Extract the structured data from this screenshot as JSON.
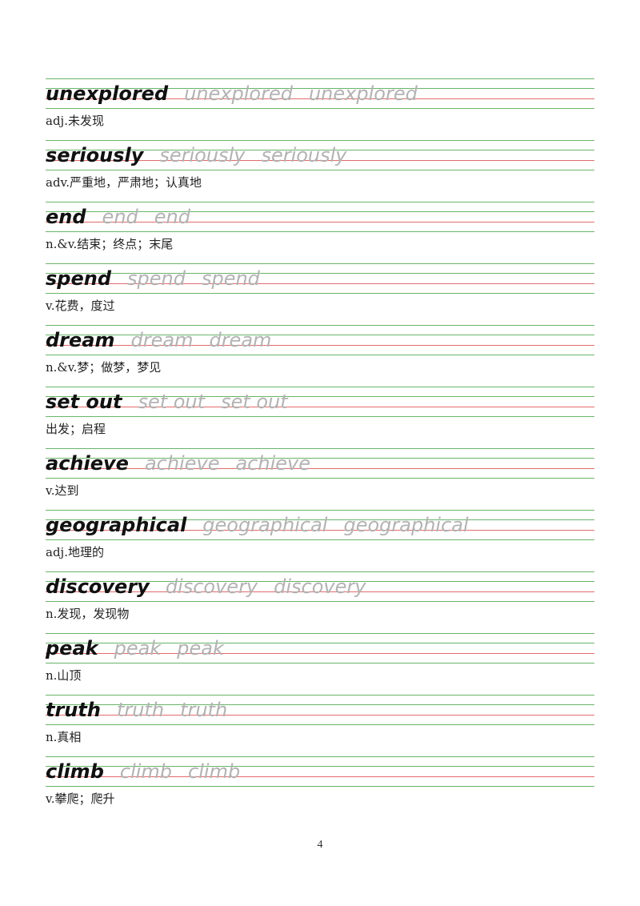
{
  "entries": [
    {
      "word": "unexplored",
      "meaning": "adj.未发现"
    },
    {
      "word": "seriously",
      "meaning": "adv.严重地，严肃地；认真地"
    },
    {
      "word": "end",
      "meaning": "n.&v.结束；终点；末尾"
    },
    {
      "word": "spend",
      "meaning": "v.花费，度过"
    },
    {
      "word": "dream",
      "meaning": "n.&v.梦；做梦，梦见"
    },
    {
      "word": "set out",
      "meaning": "出发；启程"
    },
    {
      "word": "achieve",
      "meaning": "v.达到"
    },
    {
      "word": "geographical",
      "meaning": "adj.地理的"
    },
    {
      "word": "discovery",
      "meaning": "n.发现，发现物"
    },
    {
      "word": "peak",
      "meaning": "n.山顶"
    },
    {
      "word": "truth",
      "meaning": "n.真相"
    },
    {
      "word": "climb",
      "meaning": "v.攀爬；爬升"
    }
  ],
  "page": {
    "number": "4"
  },
  "colors": {
    "guide_green": "#6ab46a",
    "guide_red": "#e36c6c",
    "word_main": "#111111",
    "word_trace": "#b3b3b3"
  }
}
